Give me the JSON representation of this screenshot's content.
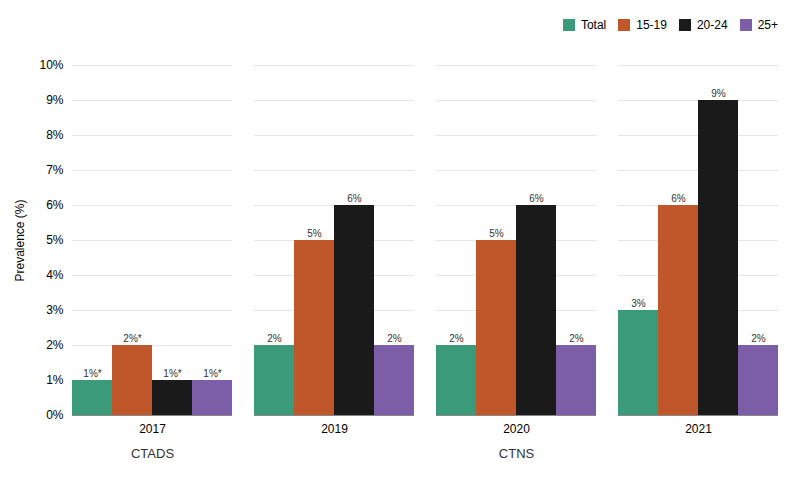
{
  "chart_data": {
    "type": "bar",
    "categories": [
      "2017",
      "2019",
      "2020",
      "2021"
    ],
    "series": [
      {
        "name": "Total",
        "color": "#3a9a7a",
        "values": [
          1,
          2,
          2,
          3
        ],
        "value_labels": [
          "1%*",
          "2%",
          "2%",
          "3%"
        ]
      },
      {
        "name": "15-19",
        "color": "#c0572a",
        "values": [
          2,
          5,
          5,
          6
        ],
        "value_labels": [
          "2%*",
          "5%",
          "5%",
          "6%"
        ]
      },
      {
        "name": "20-24",
        "color": "#1a1a1a",
        "values": [
          1,
          6,
          6,
          9
        ],
        "value_labels": [
          "1%*",
          "6%",
          "6%",
          "9%"
        ]
      },
      {
        "name": "25+",
        "color": "#7b5ea7",
        "values": [
          1,
          2,
          2,
          2
        ],
        "value_labels": [
          "1%*",
          "2%",
          "2%",
          "2%"
        ]
      }
    ],
    "ylabel": "Prevalence (%)",
    "ylim": [
      0,
      10
    ],
    "yticks": [
      {
        "value": 0,
        "label": "0%"
      },
      {
        "value": 1,
        "label": "1%"
      },
      {
        "value": 2,
        "label": "2%"
      },
      {
        "value": 3,
        "label": "3%"
      },
      {
        "value": 4,
        "label": "4%"
      },
      {
        "value": 5,
        "label": "5%"
      },
      {
        "value": 6,
        "label": "6%"
      },
      {
        "value": 7,
        "label": "7%"
      },
      {
        "value": 8,
        "label": "8%"
      },
      {
        "value": 9,
        "label": "9%"
      },
      {
        "value": 10,
        "label": "10%"
      }
    ],
    "grid": true,
    "legend": "upper right",
    "data_labels": true,
    "annotations": [
      {
        "text": "CTADS",
        "categories": [
          "2017"
        ]
      },
      {
        "text": "CTNS",
        "categories": [
          "2019",
          "2020",
          "2021"
        ]
      }
    ]
  }
}
